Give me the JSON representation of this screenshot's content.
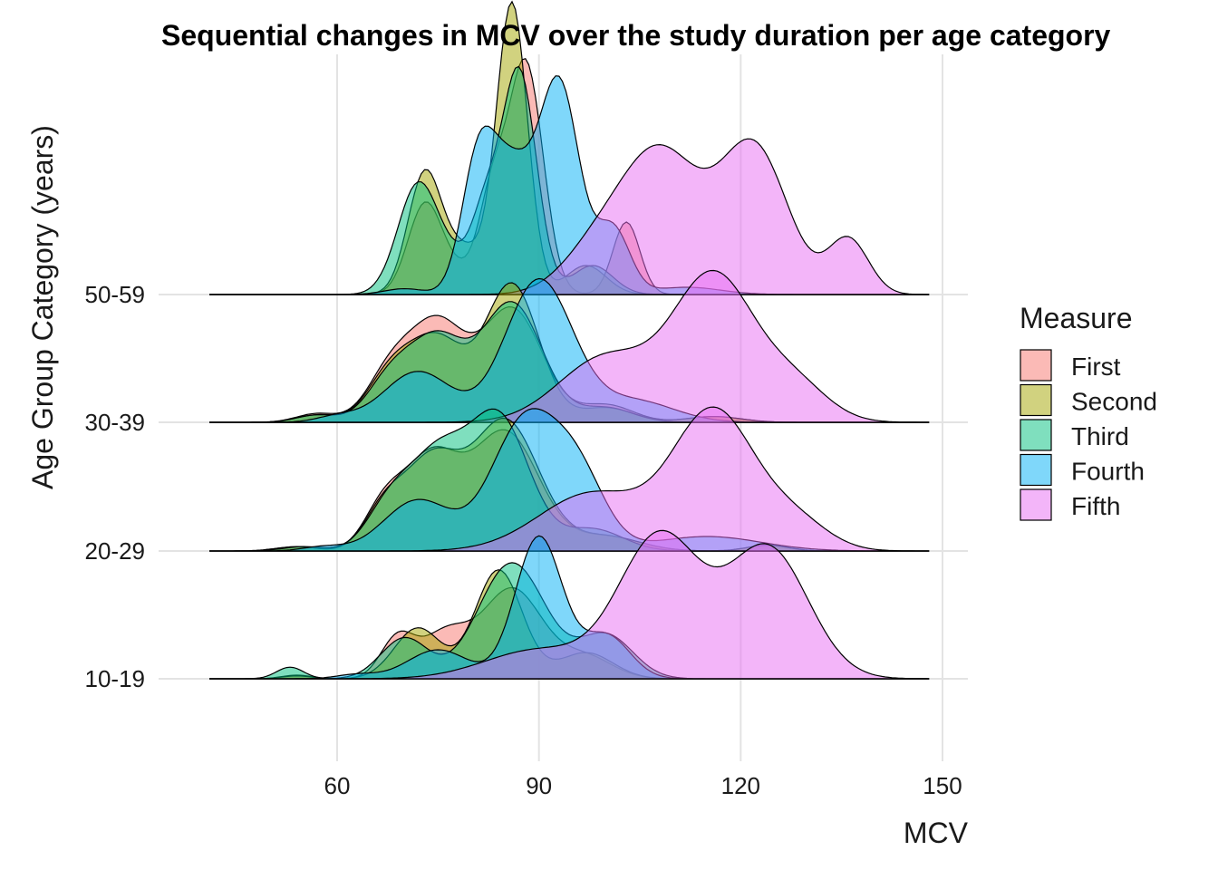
{
  "chart_data": {
    "type": "ridgeline",
    "title": "Sequential changes in MCV over the study duration per age category",
    "xlabel": "MCV",
    "ylabel": "Age Group Category (years)",
    "xlim": [
      40,
      153
    ],
    "x_ticks": [
      60,
      90,
      120,
      150
    ],
    "grid": "major x lines, on",
    "legend": {
      "title": "Measure",
      "placement": "right",
      "entries": [
        "First",
        "Second",
        "Third",
        "Fourth",
        "Fifth"
      ]
    },
    "colors": {
      "First": "#F8766D",
      "Second": "#A3A500",
      "Third": "#00BF7D",
      "Fourth": "#00B0F6",
      "Fifth": "#E76BF3"
    },
    "categories": [
      "10-19",
      "20-29",
      "30-39",
      "50-59"
    ],
    "density_domain": [
      41,
      148
    ],
    "groups": [
      {
        "category": "10-19",
        "series": [
          {
            "name": "First",
            "components": [
              [
                54,
                2.2,
                0.025
              ],
              [
                69,
                2.5,
                0.28
              ],
              [
                76,
                3.5,
                0.3
              ],
              [
                86,
                4.5,
                0.62
              ],
              [
                97,
                4.0,
                0.15
              ]
            ]
          },
          {
            "name": "Second",
            "components": [
              [
                54,
                2.2,
                0.02
              ],
              [
                72,
                3.5,
                0.35
              ],
              [
                84,
                3.5,
                0.75
              ],
              [
                97,
                4.0,
                0.18
              ]
            ]
          },
          {
            "name": "Third",
            "components": [
              [
                53,
                2.0,
                0.08
              ],
              [
                70,
                3.5,
                0.28
              ],
              [
                86,
                5.0,
                0.8
              ],
              [
                100,
                4.0,
                0.3
              ]
            ]
          },
          {
            "name": "Fourth",
            "components": [
              [
                63,
                3.0,
                0.03
              ],
              [
                75,
                4.5,
                0.2
              ],
              [
                90,
                3.5,
                0.98
              ],
              [
                100,
                3.5,
                0.3
              ]
            ]
          },
          {
            "name": "Fifth",
            "components": [
              [
                90,
                8.0,
                0.2
              ],
              [
                108,
                6.0,
                0.98
              ],
              [
                124,
                6.0,
                0.9
              ]
            ]
          }
        ]
      },
      {
        "category": "20-29",
        "series": [
          {
            "name": "First",
            "components": [
              [
                54,
                3.0,
                0.03
              ],
              [
                67,
                3.0,
                0.3
              ],
              [
                74,
                4.0,
                0.62
              ],
              [
                85,
                5.0,
                0.82
              ],
              [
                100,
                5.0,
                0.1
              ],
              [
                124,
                3.0,
                0.04
              ]
            ]
          },
          {
            "name": "Second",
            "components": [
              [
                54,
                3.0,
                0.03
              ],
              [
                67,
                3.0,
                0.28
              ],
              [
                74,
                4.0,
                0.6
              ],
              [
                85,
                5.0,
                0.9
              ],
              [
                100,
                5.0,
                0.1
              ],
              [
                124,
                3.0,
                0.04
              ]
            ]
          },
          {
            "name": "Third",
            "components": [
              [
                55,
                3.0,
                0.03
              ],
              [
                68,
                3.5,
                0.33
              ],
              [
                75,
                4.0,
                0.6
              ],
              [
                84,
                4.5,
                0.92
              ],
              [
                98,
                4.5,
                0.15
              ]
            ]
          },
          {
            "name": "Fourth",
            "components": [
              [
                58,
                3.0,
                0.03
              ],
              [
                72,
                5.0,
                0.35
              ],
              [
                88,
                5.0,
                0.9
              ],
              [
                96,
                4.0,
                0.45
              ],
              [
                115,
                8.0,
                0.1
              ]
            ]
          },
          {
            "name": "Fifth",
            "components": [
              [
                98,
                8.0,
                0.4
              ],
              [
                116,
                6.0,
                0.95
              ],
              [
                128,
                5.0,
                0.2
              ]
            ]
          }
        ]
      },
      {
        "category": "30-39",
        "series": [
          {
            "name": "First",
            "components": [
              [
                57,
                3.0,
                0.06
              ],
              [
                68,
                3.5,
                0.35
              ],
              [
                75,
                4.0,
                0.65
              ],
              [
                86,
                4.5,
                0.78
              ],
              [
                100,
                4.0,
                0.12
              ],
              [
                116,
                4.0,
                0.04
              ]
            ]
          },
          {
            "name": "Second",
            "components": [
              [
                57,
                3.0,
                0.05
              ],
              [
                68,
                3.5,
                0.33
              ],
              [
                75,
                4.0,
                0.55
              ],
              [
                86,
                4.0,
                0.95
              ],
              [
                100,
                4.0,
                0.1
              ],
              [
                116,
                4.0,
                0.04
              ]
            ]
          },
          {
            "name": "Third",
            "components": [
              [
                57,
                3.0,
                0.05
              ],
              [
                68,
                3.5,
                0.3
              ],
              [
                75,
                4.0,
                0.55
              ],
              [
                86,
                4.5,
                0.82
              ],
              [
                100,
                4.0,
                0.1
              ]
            ]
          },
          {
            "name": "Fourth",
            "components": [
              [
                60,
                3.0,
                0.04
              ],
              [
                72,
                5.0,
                0.35
              ],
              [
                90,
                5.0,
                0.98
              ],
              [
                104,
                6.0,
                0.15
              ]
            ]
          },
          {
            "name": "Fifth",
            "components": [
              [
                100,
                7.0,
                0.45
              ],
              [
                116,
                6.0,
                1.0
              ],
              [
                128,
                5.0,
                0.25
              ]
            ]
          }
        ]
      },
      {
        "category": "50-59",
        "series": [
          {
            "name": "First",
            "components": [
              [
                73,
                2.5,
                0.6
              ],
              [
                78,
                3.0,
                0.15
              ],
              [
                83,
                2.0,
                0.6
              ],
              [
                88,
                2.6,
                1.6
              ],
              [
                103,
                2.0,
                0.5
              ]
            ]
          },
          {
            "name": "Second",
            "components": [
              [
                73,
                2.5,
                0.82
              ],
              [
                79,
                3.0,
                0.3
              ],
              [
                86,
                2.3,
                2.0
              ],
              [
                97,
                3.0,
                0.2
              ]
            ]
          },
          {
            "name": "Third",
            "components": [
              [
                72,
                3.0,
                0.75
              ],
              [
                78,
                3.0,
                0.2
              ],
              [
                82,
                2.0,
                0.45
              ],
              [
                87,
                2.6,
                1.55
              ],
              [
                98,
                3.0,
                0.2
              ]
            ]
          },
          {
            "name": "Fourth",
            "components": [
              [
                70,
                3.0,
                0.04
              ],
              [
                81,
                2.5,
                0.9
              ],
              [
                86,
                3.0,
                0.8
              ],
              [
                93,
                3.0,
                1.45
              ],
              [
                101,
                2.5,
                0.45
              ],
              [
                112,
                5.0,
                0.05
              ]
            ]
          },
          {
            "name": "Fifth",
            "components": [
              [
                98,
                5.0,
                0.25
              ],
              [
                108,
                6.0,
                0.98
              ],
              [
                122,
                5.0,
                1.0
              ],
              [
                136,
                3.0,
                0.38
              ]
            ]
          }
        ]
      }
    ]
  }
}
